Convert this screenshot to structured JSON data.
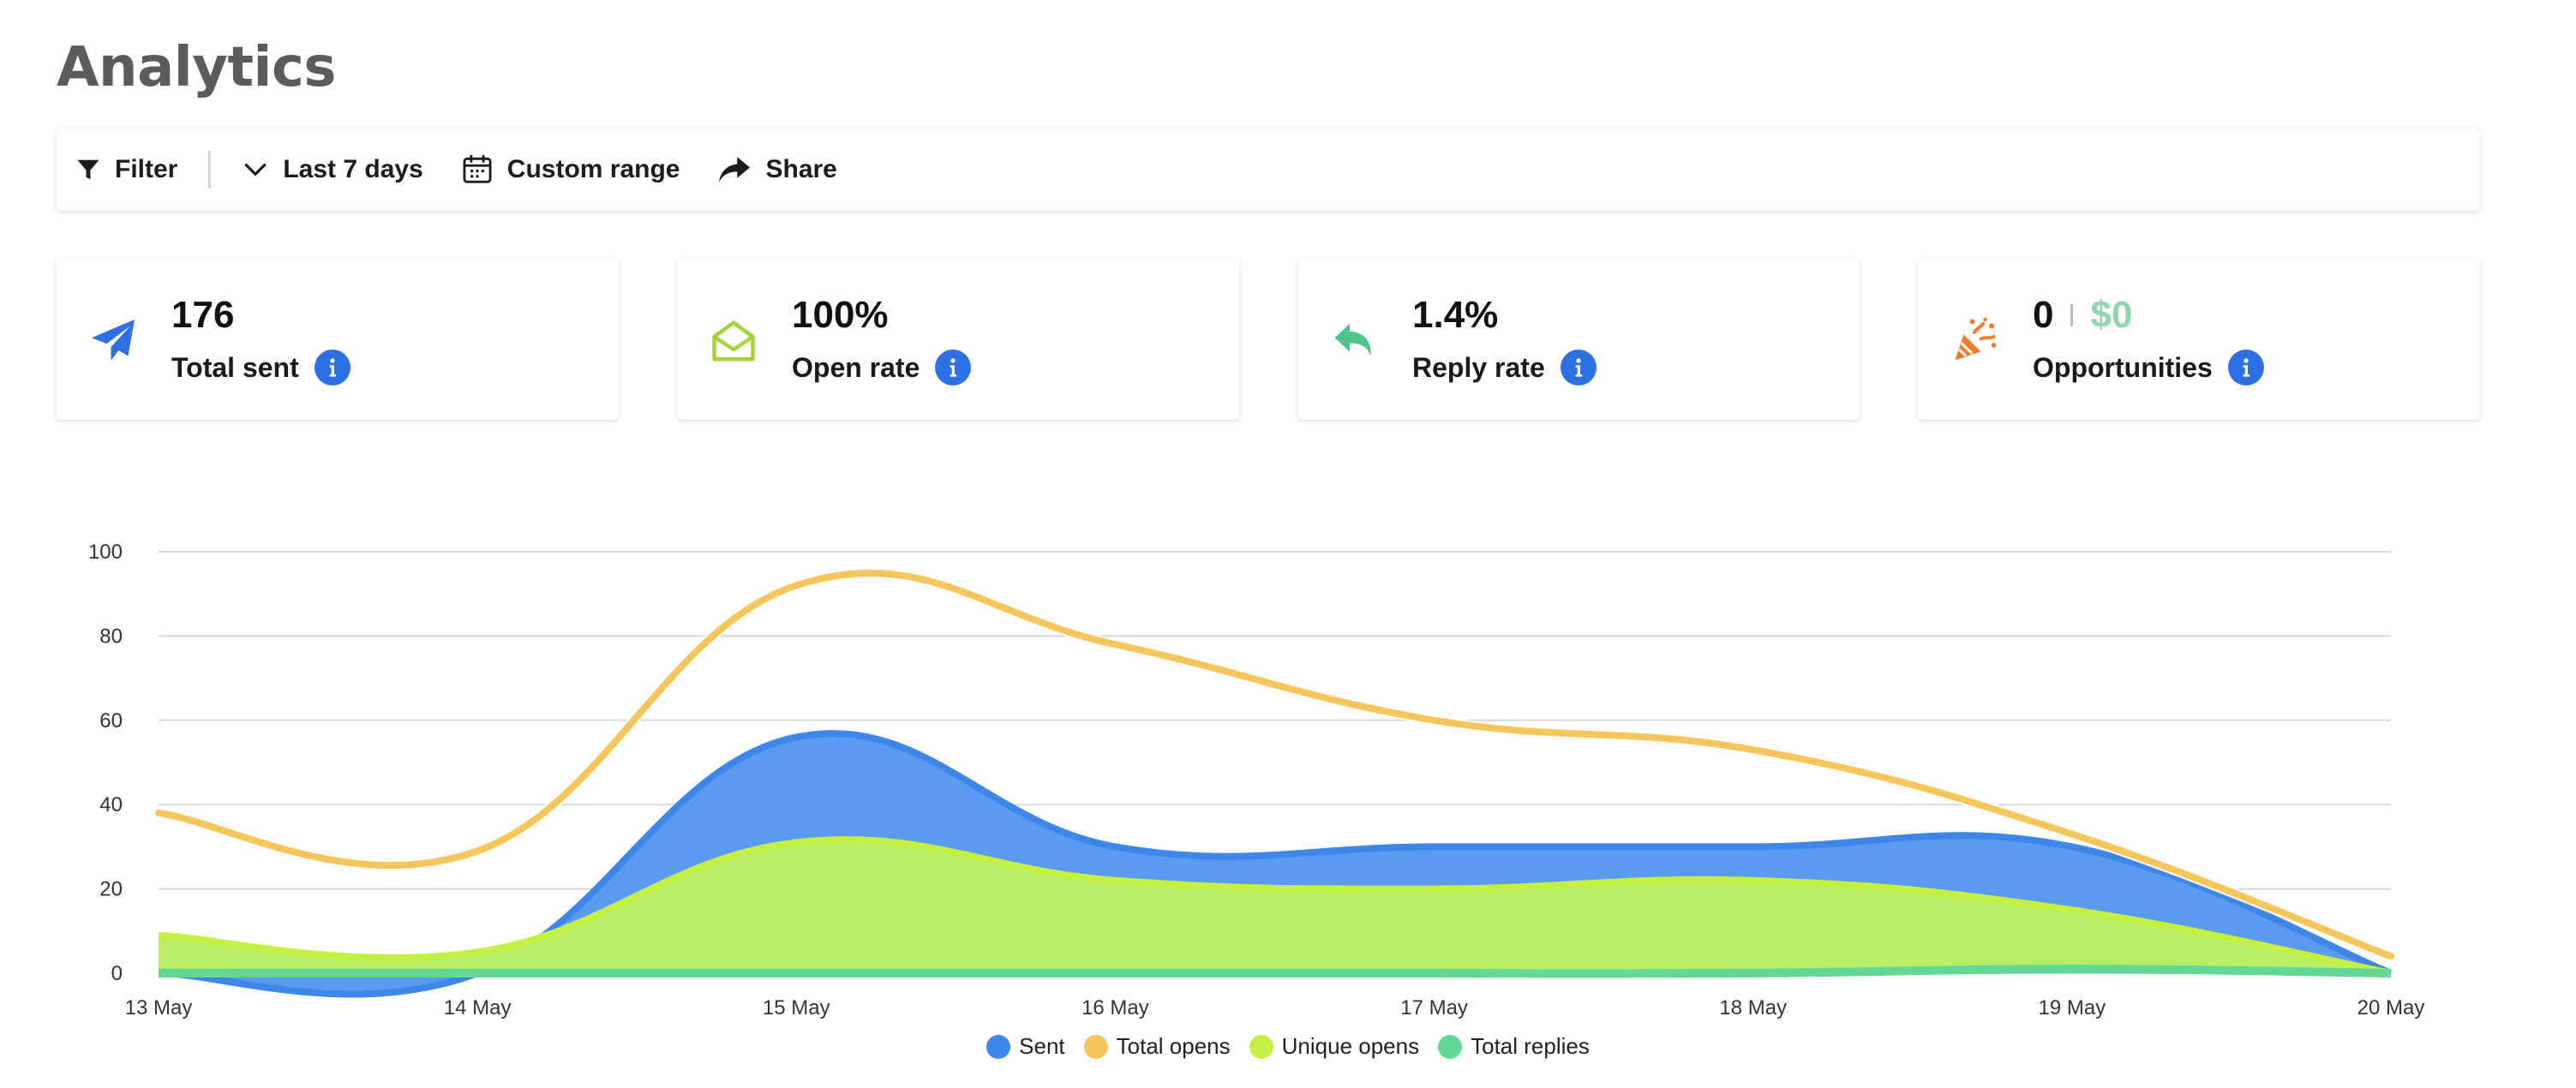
{
  "page": {
    "title": "Analytics"
  },
  "toolbar": {
    "filter_label": "Filter",
    "range_label": "Last 7 days",
    "custom_label": "Custom range",
    "share_label": "Share"
  },
  "cards": [
    {
      "value": "176",
      "label": "Total sent",
      "icon": "paper-plane-icon",
      "color": "#2f6fe4"
    },
    {
      "value": "100%",
      "label": "Open rate",
      "icon": "open-envelope-icon",
      "color": "#a5d23a"
    },
    {
      "value": "1.4%",
      "label": "Reply rate",
      "icon": "reply-arrow-icon",
      "color": "#4fc48a"
    },
    {
      "value": "0",
      "value2": "$0",
      "label": "Opportunities",
      "icon": "party-popper-icon",
      "color": "#f07d2b"
    }
  ],
  "chart_data": {
    "type": "area",
    "x": [
      "13 May",
      "14 May",
      "15 May",
      "16 May",
      "17 May",
      "18 May",
      "19 May",
      "20 May"
    ],
    "yticks": [
      0,
      20,
      40,
      60,
      80,
      100
    ],
    "ylim": [
      0,
      100
    ],
    "grid": true,
    "legend_position": "bottom",
    "series": [
      {
        "name": "Sent",
        "color": "#3f86ea",
        "fill": "#5a9bf0",
        "style": "area",
        "values": [
          0,
          0,
          56,
          30,
          30,
          30,
          30,
          0
        ]
      },
      {
        "name": "Total opens",
        "color": "#f5c65c",
        "fill": "none",
        "style": "line",
        "values": [
          38,
          29,
          92,
          78,
          60,
          53,
          33,
          4
        ]
      },
      {
        "name": "Unique opens",
        "color": "#c4f043",
        "fill": "#b7ee66",
        "style": "area",
        "values": [
          9,
          5,
          31,
          22,
          20,
          22,
          15,
          0
        ]
      },
      {
        "name": "Total replies",
        "color": "#63d894",
        "fill": "#63d894",
        "style": "area",
        "values": [
          0,
          0,
          0,
          0,
          0,
          0,
          1,
          0
        ]
      }
    ]
  }
}
